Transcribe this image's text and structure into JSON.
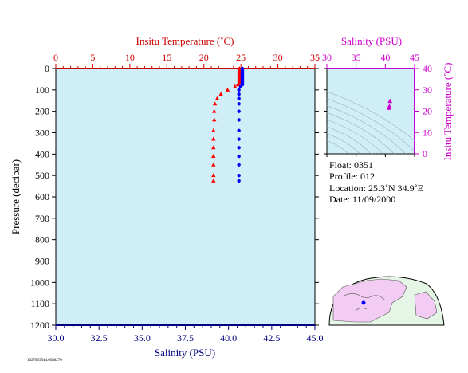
{
  "chart_data": [
    {
      "type": "scatter",
      "name": "profile",
      "top_axis": {
        "label": "Insitu Temperature (˚C)",
        "range": [
          0,
          35
        ],
        "ticks": [
          "0",
          "5",
          "10",
          "15",
          "20",
          "25",
          "30",
          "35"
        ],
        "color": "#cc0000"
      },
      "bottom_axis": {
        "label": "Salinity (PSU)",
        "range": [
          30.0,
          45.0
        ],
        "ticks": [
          "30.0",
          "32.5",
          "35.0",
          "37.5",
          "40.0",
          "42.5",
          "45.0"
        ],
        "color": "#000080"
      },
      "left_axis": {
        "label": "Pressure (decibar)",
        "range": [
          0,
          1200
        ],
        "ticks": [
          "0",
          "100",
          "200",
          "300",
          "400",
          "500",
          "600",
          "700",
          "800",
          "900",
          "1000",
          "1100",
          "1200"
        ],
        "reversed": true
      },
      "background": "#d0eef8",
      "series": [
        {
          "marker": "triangle",
          "color": "#ff0000",
          "x_axis": "top",
          "points": [
            [
              24.8,
              0
            ],
            [
              24.8,
              5
            ],
            [
              24.8,
              10
            ],
            [
              24.8,
              15
            ],
            [
              24.8,
              20
            ],
            [
              24.8,
              25
            ],
            [
              24.8,
              30
            ],
            [
              24.8,
              35
            ],
            [
              24.8,
              40
            ],
            [
              24.8,
              45
            ],
            [
              24.8,
              50
            ],
            [
              24.8,
              55
            ],
            [
              24.8,
              60
            ],
            [
              24.8,
              65
            ],
            [
              24.7,
              70
            ],
            [
              24.6,
              75
            ],
            [
              24.2,
              85
            ],
            [
              23.2,
              100
            ],
            [
              22.3,
              120
            ],
            [
              21.8,
              140
            ],
            [
              21.5,
              165
            ],
            [
              21.4,
              200
            ],
            [
              21.4,
              240
            ],
            [
              21.3,
              290
            ],
            [
              21.3,
              330
            ],
            [
              21.3,
              370
            ],
            [
              21.3,
              410
            ],
            [
              21.3,
              450
            ],
            [
              21.3,
              500
            ],
            [
              21.3,
              525
            ]
          ]
        },
        {
          "marker": "circle",
          "color": "#0000ff",
          "x_axis": "bottom",
          "points": [
            [
              40.8,
              0
            ],
            [
              40.8,
              5
            ],
            [
              40.8,
              10
            ],
            [
              40.8,
              15
            ],
            [
              40.8,
              20
            ],
            [
              40.8,
              25
            ],
            [
              40.8,
              30
            ],
            [
              40.8,
              35
            ],
            [
              40.8,
              40
            ],
            [
              40.8,
              45
            ],
            [
              40.8,
              50
            ],
            [
              40.8,
              55
            ],
            [
              40.8,
              60
            ],
            [
              40.8,
              65
            ],
            [
              40.8,
              70
            ],
            [
              40.8,
              75
            ],
            [
              40.7,
              85
            ],
            [
              40.6,
              100
            ],
            [
              40.6,
              120
            ],
            [
              40.6,
              140
            ],
            [
              40.6,
              165
            ],
            [
              40.6,
              200
            ],
            [
              40.6,
              240
            ],
            [
              40.6,
              290
            ],
            [
              40.6,
              330
            ],
            [
              40.6,
              370
            ],
            [
              40.6,
              410
            ],
            [
              40.6,
              450
            ],
            [
              40.6,
              500
            ],
            [
              40.6,
              525
            ]
          ]
        }
      ]
    },
    {
      "type": "scatter",
      "name": "ts-diagram",
      "top_axis": {
        "label": "Salinity (PSU)",
        "range": [
          30,
          45
        ],
        "ticks": [
          "30",
          "35",
          "40",
          "45"
        ],
        "color": "#cc00cc"
      },
      "right_axis": {
        "label": "Insitu Temperature (˚C)",
        "range": [
          0,
          40
        ],
        "ticks": [
          "0",
          "10",
          "20",
          "30",
          "40"
        ],
        "color": "#cc00cc"
      },
      "points": [
        [
          40.6,
          21.4
        ],
        [
          40.6,
          21.8
        ],
        [
          40.7,
          22.3
        ],
        [
          40.8,
          24.8
        ],
        [
          40.8,
          24.6
        ]
      ],
      "marker_color": "#cc00cc"
    }
  ],
  "info": {
    "float": "Float:  0351",
    "profile": "Profile:  012",
    "location": "Location:  25.3˚N  34.9˚E",
    "date": "Date:  11/09/2000"
  },
  "footnote": "1027803544.0588276",
  "map": {
    "marker_color": "#0000ff"
  }
}
